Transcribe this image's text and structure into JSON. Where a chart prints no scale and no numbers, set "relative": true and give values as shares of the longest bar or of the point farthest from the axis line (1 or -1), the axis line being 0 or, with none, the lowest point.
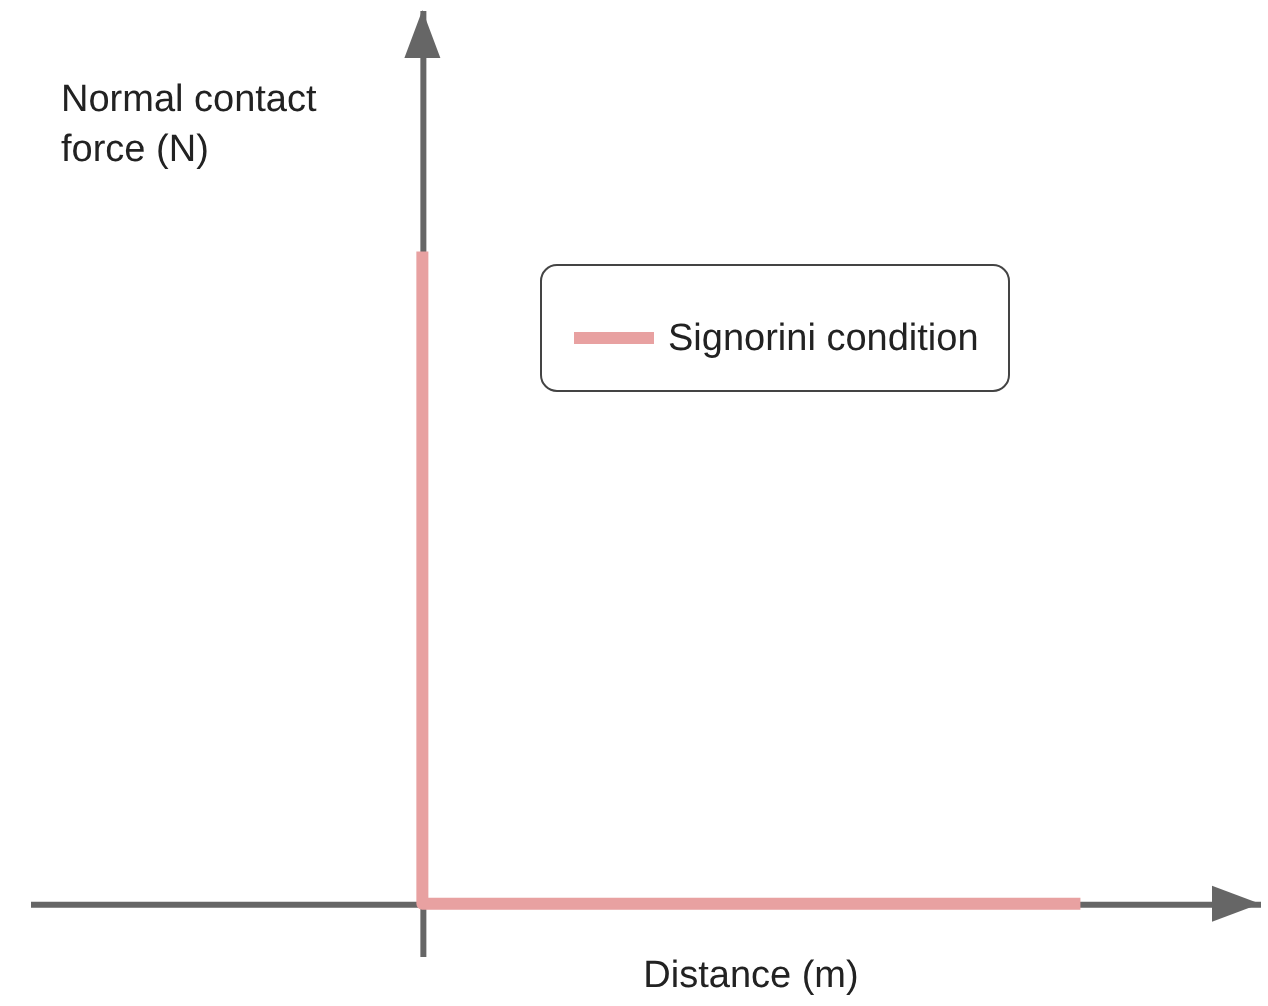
{
  "chart_data": {
    "type": "step",
    "relative": true,
    "xlabel": "Distance (m)",
    "ylabel": "Normal contact force (N)",
    "categories": [
      null,
      null
    ],
    "series": [
      {
        "name": "Signorini condition",
        "color": "#e8a1a1",
        "values": [
          1,
          0
        ]
      }
    ],
    "legend": "top right",
    "tick_labels": false,
    "grid": false,
    "marker": "none",
    "line_style": "solid"
  }
}
